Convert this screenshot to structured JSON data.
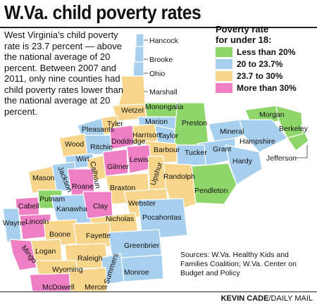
{
  "title": "W.Va. child poverty rates",
  "blurb": "West Virginia's child poverty rate is 23.7 percent — above the national average of 20 percent. Between 2007 and 2011, only nine counties had child poverty rates lower than the national average at 20 percent.",
  "legend": {
    "title_line1": "Poverty rate",
    "title_line2": "for under 18:",
    "items": [
      {
        "label": "Less than 20%",
        "color": "#8fd66a"
      },
      {
        "label": "20 to 23.7%",
        "color": "#a7cfee"
      },
      {
        "label": "23.7 to 30%",
        "color": "#f7d58a"
      },
      {
        "label": "More than 30%",
        "color": "#ee7fc4"
      }
    ]
  },
  "counties": {
    "hancock": "Hancock",
    "brooke": "Brooke",
    "ohio": "Ohio",
    "marshall": "Marshall",
    "wetzel": "Wetzel",
    "monongalia": "Monongalia",
    "marion": "Marion",
    "preston": "Preston",
    "morgan": "Morgan",
    "berkeley": "Berkeley",
    "jefferson": "Jefferson",
    "mineral": "Mineral",
    "hampshire": "Hampshire",
    "grant": "Grant",
    "hardy": "Hardy",
    "tucker": "Tucker",
    "pleasants": "Pleasants",
    "tyler": "Tyler",
    "harrison": "Harrison",
    "taylor": "Taylor",
    "barbour": "Barbour",
    "wood": "Wood",
    "ritchie": "Ritchie",
    "doddridge": "Doddridge",
    "wirt": "Wirt",
    "calhoun": "Calhoun",
    "gilmer": "Gilmer",
    "lewis": "Lewis",
    "upshur": "Upshur",
    "randolph": "Randolph",
    "pendleton": "Pendleton",
    "mason": "Mason",
    "jackson": "Jackson",
    "roane": "Roane",
    "braxton": "Braxton",
    "putnam": "Putnam",
    "kanawha": "Kanawha",
    "clay": "Clay",
    "webster": "Webster",
    "cabell": "Cabell",
    "wayne": "Wayne",
    "lincoln": "Lincoln",
    "nicholas": "Nicholas",
    "pocahontas": "Pocahontas",
    "boone": "Boone",
    "fayette": "Fayette",
    "logan": "Logan",
    "greenbrier": "Greenbrier",
    "mingo": "Mingo",
    "raleigh": "Raleigh",
    "wyoming": "Wyoming",
    "summers": "Summers",
    "monroe": "Monroe",
    "mcdowell": "McDowell",
    "mercer": "Mercer"
  },
  "sources": "Sources: W.Va. Healthy Kids and Families Coalition; W.Va. Center on Budget and Policy",
  "credit_name": "KEVIN CADE",
  "credit_outlet": "/DAILY MAIL"
}
